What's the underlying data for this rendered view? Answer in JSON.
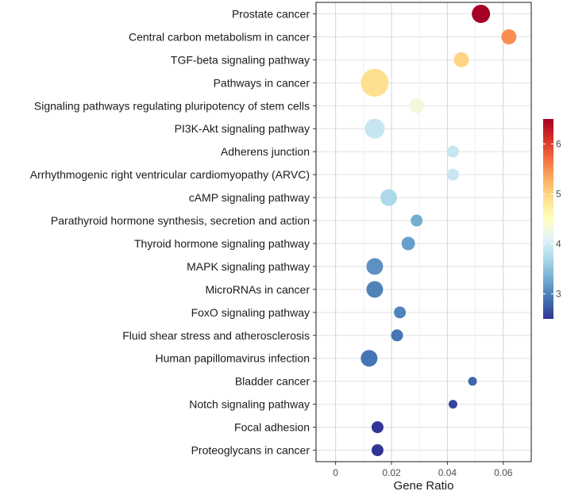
{
  "chart_data": {
    "type": "scatter",
    "title": "",
    "xlabel": "Gene Ratio",
    "ylabel": "",
    "xlim": [
      -0.007,
      0.07
    ],
    "xticks": [
      0,
      0.02,
      0.04,
      0.06
    ],
    "xtick_labels": [
      "0",
      "0.02",
      "0.04",
      "0.06"
    ],
    "grid": true,
    "categories": [
      "Prostate cancer",
      "Central carbon metabolism in cancer",
      "TGF-beta signaling pathway",
      "Pathways in cancer",
      "Signaling pathways regulating pluripotency of stem cells",
      "PI3K-Akt signaling pathway",
      "Adherens junction",
      "Arrhythmogenic right ventricular cardiomyopathy (ARVC)",
      "cAMP signaling pathway",
      "Parathyroid hormone synthesis, secretion and action",
      "Thyroid hormone signaling pathway",
      "MAPK signaling pathway",
      "MicroRNAs in cancer",
      "FoxO signaling pathway",
      "Fluid shear stress and atherosclerosis",
      "Human papillomavirus infection",
      "Bladder cancer",
      "Notch signaling pathway",
      "Focal adhesion",
      "Proteoglycans in cancer"
    ],
    "points": [
      {
        "x": 0.052,
        "color_value": 6.5,
        "size_value": 7
      },
      {
        "x": 0.062,
        "color_value": 5.5,
        "size_value": 5
      },
      {
        "x": 0.045,
        "color_value": 5.0,
        "size_value": 5
      },
      {
        "x": 0.014,
        "color_value": 4.9,
        "size_value": 13
      },
      {
        "x": 0.029,
        "color_value": 4.3,
        "size_value": 5
      },
      {
        "x": 0.014,
        "color_value": 3.9,
        "size_value": 8
      },
      {
        "x": 0.042,
        "color_value": 3.9,
        "size_value": 3
      },
      {
        "x": 0.042,
        "color_value": 3.9,
        "size_value": 3
      },
      {
        "x": 0.019,
        "color_value": 3.7,
        "size_value": 6
      },
      {
        "x": 0.029,
        "color_value": 3.3,
        "size_value": 3
      },
      {
        "x": 0.026,
        "color_value": 3.2,
        "size_value": 4
      },
      {
        "x": 0.014,
        "color_value": 3.1,
        "size_value": 6
      },
      {
        "x": 0.014,
        "color_value": 3.0,
        "size_value": 6
      },
      {
        "x": 0.023,
        "color_value": 3.0,
        "size_value": 3
      },
      {
        "x": 0.022,
        "color_value": 2.9,
        "size_value": 3
      },
      {
        "x": 0.012,
        "color_value": 2.9,
        "size_value": 6
      },
      {
        "x": 0.049,
        "color_value": 2.8,
        "size_value": 1
      },
      {
        "x": 0.042,
        "color_value": 2.6,
        "size_value": 1
      },
      {
        "x": 0.015,
        "color_value": 2.5,
        "size_value": 3
      },
      {
        "x": 0.015,
        "color_value": 2.5,
        "size_value": 3
      }
    ],
    "colorbar": {
      "range": [
        2.5,
        6.5
      ],
      "ticks": [
        3,
        4,
        5,
        6
      ],
      "tick_labels": [
        "3",
        "4",
        "5",
        "6"
      ],
      "stops": [
        "#313695",
        "#4575b4",
        "#74add1",
        "#abd9e9",
        "#e0f3f8",
        "#ffffbf",
        "#fee090",
        "#fdae61",
        "#f46d43",
        "#d73027",
        "#a50026"
      ],
      "placement": "right"
    }
  }
}
